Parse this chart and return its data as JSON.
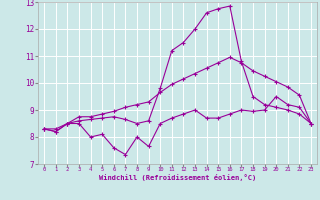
{
  "xlabel": "Windchill (Refroidissement éolien,°C)",
  "xlim": [
    -0.5,
    23.5
  ],
  "ylim": [
    7,
    13
  ],
  "yticks": [
    7,
    8,
    9,
    10,
    11,
    12,
    13
  ],
  "xticks": [
    0,
    1,
    2,
    3,
    4,
    5,
    6,
    7,
    8,
    9,
    10,
    11,
    12,
    13,
    14,
    15,
    16,
    17,
    18,
    19,
    20,
    21,
    22,
    23
  ],
  "bg_color": "#cce8e8",
  "line_color": "#990099",
  "grid_color": "#ffffff",
  "series": [
    [
      8.3,
      8.2,
      8.5,
      8.5,
      8.0,
      8.1,
      7.6,
      7.35,
      8.0,
      7.65,
      8.5,
      8.7,
      8.85,
      9.0,
      8.7,
      8.7,
      8.85,
      9.0,
      8.95,
      9.0,
      9.5,
      9.2,
      9.1,
      8.5
    ],
    [
      8.3,
      8.3,
      8.5,
      8.75,
      8.75,
      8.85,
      8.95,
      9.1,
      9.2,
      9.3,
      9.65,
      9.95,
      10.15,
      10.35,
      10.55,
      10.75,
      10.95,
      10.75,
      10.45,
      10.25,
      10.05,
      9.85,
      9.55,
      8.5
    ],
    [
      8.3,
      8.2,
      8.5,
      8.6,
      8.65,
      8.7,
      8.75,
      8.65,
      8.5,
      8.6,
      9.8,
      11.2,
      11.5,
      12.0,
      12.6,
      12.75,
      12.85,
      10.8,
      9.5,
      9.2,
      9.1,
      9.0,
      8.85,
      8.5
    ]
  ]
}
